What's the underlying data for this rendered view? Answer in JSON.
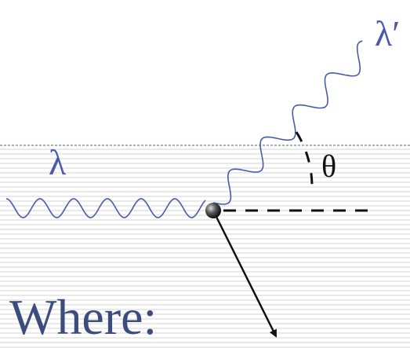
{
  "labels": {
    "incident_wavelength": "λ",
    "scattered_wavelength": "λ′",
    "angle": "θ"
  },
  "caption": "Where:"
}
